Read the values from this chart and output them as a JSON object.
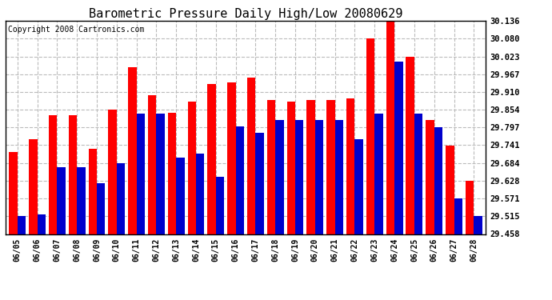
{
  "title": "Barometric Pressure Daily High/Low 20080629",
  "copyright": "Copyright 2008 Cartronics.com",
  "dates": [
    "06/05",
    "06/06",
    "06/07",
    "06/08",
    "06/09",
    "06/10",
    "06/11",
    "06/12",
    "06/13",
    "06/14",
    "06/15",
    "06/16",
    "06/17",
    "06/18",
    "06/19",
    "06/20",
    "06/21",
    "06/22",
    "06/23",
    "06/24",
    "06/25",
    "06/26",
    "06/27",
    "06/28"
  ],
  "highs": [
    29.72,
    29.76,
    29.835,
    29.835,
    29.73,
    29.855,
    29.99,
    29.9,
    29.845,
    29.88,
    29.935,
    29.94,
    29.955,
    29.885,
    29.88,
    29.885,
    29.885,
    29.89,
    30.08,
    30.136,
    30.023,
    29.82,
    29.74,
    29.628
  ],
  "lows": [
    29.515,
    29.52,
    29.67,
    29.67,
    29.62,
    29.684,
    29.84,
    29.84,
    29.7,
    29.715,
    29.64,
    29.8,
    29.78,
    29.82,
    29.82,
    29.82,
    29.82,
    29.76,
    29.84,
    30.007,
    29.84,
    29.797,
    29.571,
    29.515
  ],
  "high_color": "#ff0000",
  "low_color": "#0000cc",
  "yticks": [
    29.458,
    29.515,
    29.571,
    29.628,
    29.684,
    29.741,
    29.797,
    29.854,
    29.91,
    29.967,
    30.023,
    30.08,
    30.136
  ],
  "ymin": 29.458,
  "ymax": 30.136,
  "background_color": "#ffffff",
  "grid_color": "#bbbbbb",
  "title_fontsize": 11,
  "copyright_fontsize": 7
}
